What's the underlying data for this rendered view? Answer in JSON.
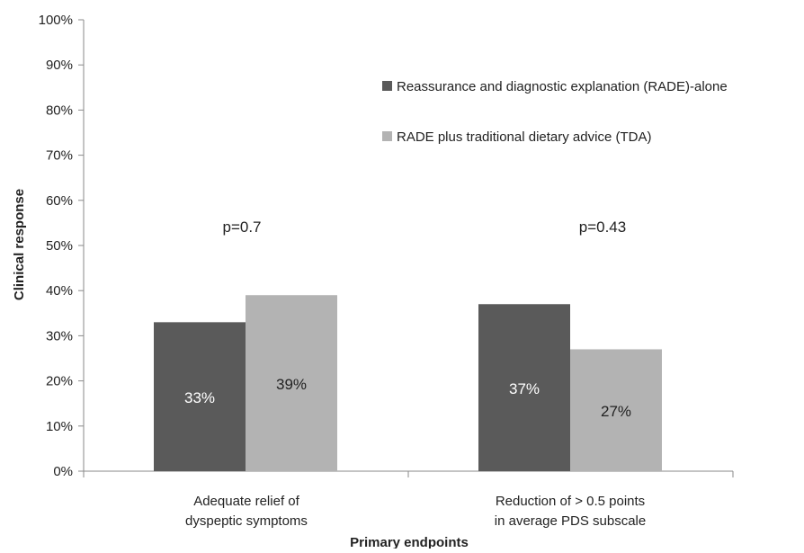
{
  "chart_data": {
    "type": "bar",
    "title": "",
    "xlabel": "Primary endpoints",
    "ylabel": "Clinical response",
    "ylim": [
      0,
      100
    ],
    "yticks": [
      "0%",
      "10%",
      "20%",
      "30%",
      "40%",
      "50%",
      "60%",
      "70%",
      "80%",
      "90%",
      "100%"
    ],
    "categories": [
      [
        "Adequate relief of",
        "dyspeptic symptoms"
      ],
      [
        "Reduction of > 0.5 points",
        "in average PDS subscale"
      ]
    ],
    "series": [
      {
        "name": "Reassurance and diagnostic explanation (RADE)-alone",
        "color": "#5a5a5a",
        "values": [
          33,
          37
        ],
        "labels": [
          "33%",
          "37%"
        ],
        "label_color": "#ffffff"
      },
      {
        "name": "RADE plus traditional dietary advice (TDA)",
        "color": "#b3b3b3",
        "values": [
          39,
          27
        ],
        "labels": [
          "39%",
          "27%"
        ],
        "label_color": "#222222"
      }
    ],
    "annotations": [
      "p=0.7",
      "p=0.43"
    ],
    "grid": false,
    "legend_position": "top-right"
  }
}
